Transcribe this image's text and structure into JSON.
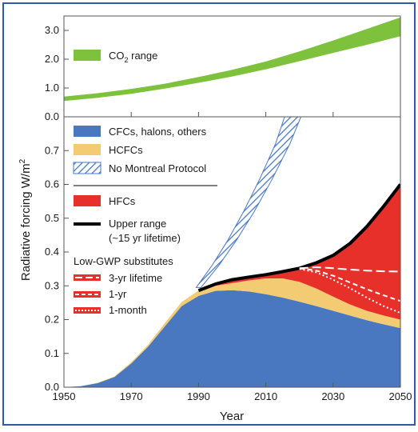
{
  "colors": {
    "border": "#2e5aa8",
    "co2": "#7ec13d",
    "cfc": "#4a78c0",
    "hcfc": "#f3cb72",
    "hfc": "#e8302a",
    "upper": "#000000",
    "hatch": "#4a78c0",
    "lowgwp": "#ffffff"
  },
  "chart_data": [
    {
      "type": "area",
      "panel": "top",
      "ylim": [
        0,
        3.5
      ],
      "yticks": [
        "0.0",
        "1.0",
        "2.0",
        "3.0"
      ],
      "series": [
        {
          "name": "CO2 range",
          "x": [
            1950,
            1960,
            1970,
            1980,
            1990,
            2000,
            2010,
            2020,
            2030,
            2040,
            2050
          ],
          "lower": [
            0.55,
            0.66,
            0.8,
            0.98,
            1.18,
            1.4,
            1.65,
            1.93,
            2.22,
            2.5,
            2.8
          ],
          "upper": [
            0.7,
            0.82,
            0.97,
            1.15,
            1.38,
            1.63,
            1.92,
            2.27,
            2.65,
            3.05,
            3.45
          ]
        }
      ],
      "legend": [
        {
          "label": "CO",
          "sub": "2",
          "suffix": " range"
        }
      ]
    },
    {
      "type": "area",
      "panel": "bottom",
      "xlabel": "Year",
      "ylabel": "Radiative forcing W/m",
      "ylabel_sup": "2",
      "xlim": [
        1950,
        2050
      ],
      "ylim": [
        0,
        0.8
      ],
      "xticks": [
        "1950",
        "1970",
        "1990",
        "2010",
        "2030",
        "2050"
      ],
      "yticks": [
        "0.0",
        "0.1",
        "0.2",
        "0.3",
        "0.4",
        "0.5",
        "0.6",
        "0.7"
      ],
      "x": [
        1950,
        1955,
        1960,
        1965,
        1970,
        1975,
        1980,
        1985,
        1990,
        1995,
        2000,
        2005,
        2010,
        2015,
        2020,
        2025,
        2030,
        2035,
        2040,
        2045,
        2050
      ],
      "series": [
        {
          "name": "CFCs, halons, others",
          "values": [
            0.0,
            0.003,
            0.012,
            0.03,
            0.07,
            0.12,
            0.18,
            0.24,
            0.27,
            0.285,
            0.287,
            0.283,
            0.275,
            0.265,
            0.253,
            0.24,
            0.226,
            0.212,
            0.198,
            0.186,
            0.175
          ]
        },
        {
          "name": "HCFCs",
          "cumulative": [
            0.0,
            0.003,
            0.013,
            0.032,
            0.074,
            0.126,
            0.19,
            0.252,
            0.286,
            0.3,
            0.308,
            0.316,
            0.322,
            0.322,
            0.312,
            0.292,
            0.268,
            0.245,
            0.226,
            0.212,
            0.2
          ]
        },
        {
          "name": "HFCs",
          "cumulative": [
            null,
            null,
            null,
            null,
            null,
            null,
            null,
            null,
            0.286,
            0.305,
            0.318,
            0.326,
            0.333,
            0.342,
            0.352,
            0.368,
            0.39,
            0.425,
            0.475,
            0.535,
            0.6
          ]
        },
        {
          "name": "No Montreal Protocol",
          "x": [
            1990,
            1995,
            2000,
            2005,
            2010,
            2015,
            2018,
            2021
          ],
          "lower": [
            0.29,
            0.35,
            0.42,
            0.5,
            0.59,
            0.69,
            0.76,
            0.84
          ],
          "upper": [
            0.3,
            0.37,
            0.45,
            0.54,
            0.64,
            0.75,
            0.84,
            0.84
          ]
        },
        {
          "name": "Upper range (~15 yr lifetime)",
          "values": [
            null,
            null,
            null,
            null,
            null,
            null,
            null,
            null,
            0.286,
            0.305,
            0.318,
            0.326,
            0.333,
            0.342,
            0.352,
            0.368,
            0.39,
            0.425,
            0.475,
            0.535,
            0.6
          ]
        },
        {
          "name": "3-yr lifetime",
          "x": [
            2020,
            2025,
            2030,
            2035,
            2040,
            2045,
            2050
          ],
          "values": [
            0.352,
            0.355,
            0.352,
            0.348,
            0.345,
            0.343,
            0.342
          ]
        },
        {
          "name": "1-yr",
          "x": [
            2020,
            2025,
            2030,
            2035,
            2040,
            2045,
            2050
          ],
          "values": [
            0.352,
            0.345,
            0.33,
            0.31,
            0.29,
            0.272,
            0.255
          ]
        },
        {
          "name": "1-month",
          "x": [
            2020,
            2025,
            2030,
            2035,
            2040,
            2045,
            2050
          ],
          "values": [
            0.35,
            0.34,
            0.318,
            0.293,
            0.265,
            0.24,
            0.22
          ]
        }
      ],
      "legend": {
        "items": [
          {
            "label": "CFCs, halons, others"
          },
          {
            "label": "HCFCs"
          },
          {
            "label": "No Montreal Protocol"
          },
          {
            "label": "HFCs"
          },
          {
            "label": "Upper range"
          },
          {
            "label": "(~15 yr lifetime)"
          }
        ],
        "subheading": "Low-GWP substitutes",
        "lowgwp": [
          {
            "label": "3-yr lifetime"
          },
          {
            "label": "1-yr"
          },
          {
            "label": "1-month"
          }
        ]
      }
    }
  ]
}
